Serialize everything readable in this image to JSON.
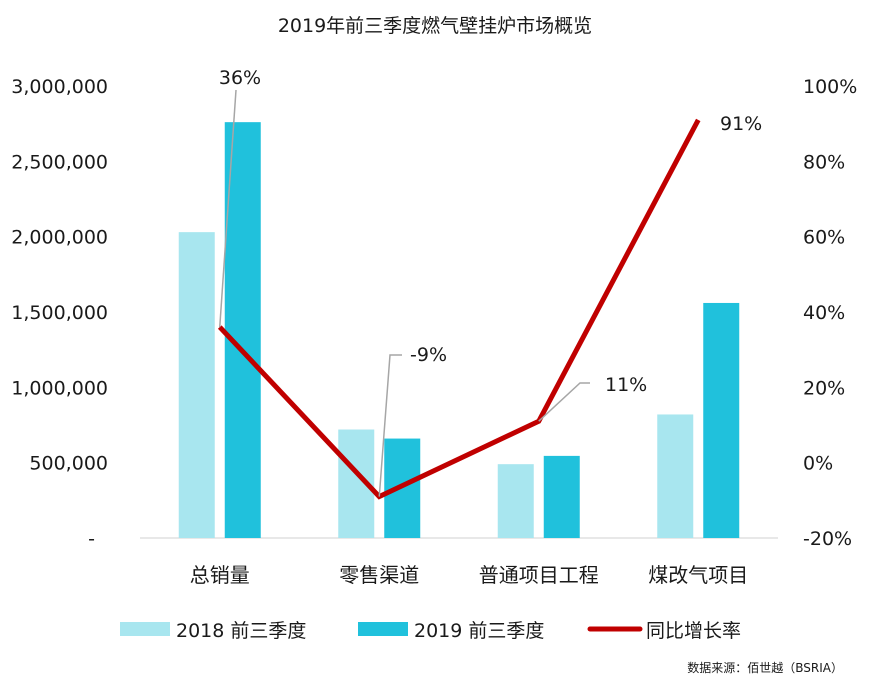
{
  "chart_data": {
    "type": "bar",
    "title": "2019年前三季度燃气壁挂炉市场概览",
    "source": "数据来源：佰世越（BSRIA）",
    "categories": [
      "总销量",
      "零售渠道",
      "普通项目工程",
      "煤改气项目"
    ],
    "series": [
      {
        "name": "2018 前三季度",
        "type": "bar",
        "axis": "left",
        "color": "#a8e6ef",
        "values": [
          2030000,
          720000,
          490000,
          820000
        ]
      },
      {
        "name": "2019 前三季度",
        "type": "bar",
        "axis": "left",
        "color": "#20c1dc",
        "values": [
          2760000,
          660000,
          545000,
          1560000
        ]
      },
      {
        "name": "同比增长率",
        "type": "line",
        "axis": "right",
        "color": "#c00000",
        "values": [
          36,
          -9,
          11,
          91
        ],
        "labels": [
          "36%",
          "-9%",
          "11%",
          "91%"
        ]
      }
    ],
    "y_left": {
      "ylim": [
        0,
        3000000
      ],
      "ticks": [
        0,
        500000,
        1000000,
        1500000,
        2000000,
        2500000,
        3000000
      ],
      "tick_labels": [
        "-",
        "500,000",
        "1,000,000",
        "1,500,000",
        "2,000,000",
        "2,500,000",
        "3,000,000"
      ]
    },
    "y_right": {
      "ylim": [
        -20,
        100
      ],
      "ticks": [
        -20,
        0,
        20,
        40,
        60,
        80,
        100
      ],
      "tick_labels": [
        "-20%",
        "0%",
        "20%",
        "40%",
        "60%",
        "80%",
        "100%"
      ]
    },
    "grid": false,
    "legend": "bottom"
  }
}
